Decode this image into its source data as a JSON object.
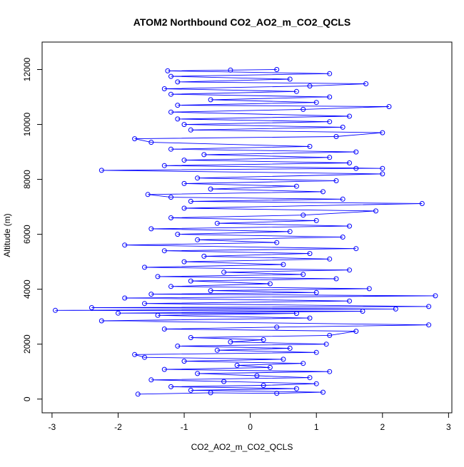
{
  "chart_data": {
    "type": "scatter",
    "title": "ATOM2 Northbound CO2_AO2_m_CO2_QCLS",
    "xlabel": "CO2_AO2_m_CO2_QCLS",
    "ylabel": "Altitude (m)",
    "xlim": [
      -3.15,
      3.05
    ],
    "ylim": [
      -500,
      13000
    ],
    "x_ticks": [
      -3,
      -2,
      -1,
      0,
      1,
      2,
      3
    ],
    "y_ticks": [
      0,
      2000,
      4000,
      6000,
      8000,
      10000,
      12000
    ],
    "x_tick_labels": [
      "-3",
      "-2",
      "-1",
      "0",
      "1",
      "2",
      "3"
    ],
    "y_tick_labels": [
      "0",
      "2000",
      "4000",
      "6000",
      "8000",
      "10000",
      "12000"
    ],
    "grid": false,
    "legend": "none",
    "series_color": "#0000ff",
    "markers": "open-circle-connected",
    "series": [
      {
        "values_xy": [
          [
            -1.7,
            180
          ],
          [
            -0.6,
            230
          ],
          [
            0.4,
            210
          ],
          [
            1.1,
            250
          ],
          [
            -0.9,
            320
          ],
          [
            0.7,
            380
          ],
          [
            -1.2,
            450
          ],
          [
            0.2,
            500
          ],
          [
            1.0,
            560
          ],
          [
            -0.4,
            640
          ],
          [
            -1.5,
            700
          ],
          [
            0.9,
            780
          ],
          [
            0.1,
            850
          ],
          [
            -0.8,
            930
          ],
          [
            1.2,
            1000
          ],
          [
            -1.3,
            1080
          ],
          [
            0.3,
            1150
          ],
          [
            -0.2,
            1230
          ],
          [
            0.8,
            1300
          ],
          [
            -1.0,
            1380
          ],
          [
            0.5,
            1450
          ],
          [
            -1.6,
            1520
          ],
          [
            -1.75,
            1620
          ],
          [
            1.0,
            1700
          ],
          [
            -0.5,
            1780
          ],
          [
            0.6,
            1850
          ],
          [
            -1.1,
            1930
          ],
          [
            1.15,
            2000
          ],
          [
            -0.3,
            2080
          ],
          [
            0.2,
            2160
          ],
          [
            -0.9,
            2240
          ],
          [
            1.2,
            2320
          ],
          [
            1.6,
            2470
          ],
          [
            -1.3,
            2550
          ],
          [
            0.4,
            2620
          ],
          [
            2.7,
            2700
          ],
          [
            -2.25,
            2850
          ],
          [
            0.9,
            2950
          ],
          [
            -1.4,
            3050
          ],
          [
            0.7,
            3120
          ],
          [
            -2.0,
            3130
          ],
          [
            1.7,
            3200
          ],
          [
            -2.95,
            3230
          ],
          [
            2.2,
            3280
          ],
          [
            -2.4,
            3330
          ],
          [
            2.7,
            3370
          ],
          [
            -1.6,
            3480
          ],
          [
            1.5,
            3570
          ],
          [
            -1.9,
            3680
          ],
          [
            2.8,
            3760
          ],
          [
            -1.5,
            3820
          ],
          [
            1.0,
            3880
          ],
          [
            -0.6,
            3950
          ],
          [
            1.8,
            4020
          ],
          [
            -1.2,
            4100
          ],
          [
            0.3,
            4200
          ],
          [
            -0.9,
            4300
          ],
          [
            1.3,
            4380
          ],
          [
            -1.4,
            4460
          ],
          [
            0.8,
            4540
          ],
          [
            -0.4,
            4620
          ],
          [
            1.5,
            4700
          ],
          [
            -1.6,
            4800
          ],
          [
            0.5,
            4900
          ],
          [
            -1.0,
            5000
          ],
          [
            1.2,
            5100
          ],
          [
            -0.7,
            5200
          ],
          [
            0.9,
            5300
          ],
          [
            -1.3,
            5400
          ],
          [
            1.6,
            5480
          ],
          [
            -1.9,
            5610
          ],
          [
            0.4,
            5700
          ],
          [
            -0.8,
            5800
          ],
          [
            1.4,
            5900
          ],
          [
            -1.1,
            6000
          ],
          [
            0.6,
            6100
          ],
          [
            -1.5,
            6200
          ],
          [
            1.5,
            6300
          ],
          [
            -0.5,
            6400
          ],
          [
            1.0,
            6500
          ],
          [
            -1.2,
            6600
          ],
          [
            0.8,
            6700
          ],
          [
            1.9,
            6850
          ],
          [
            -1.0,
            6950
          ],
          [
            2.6,
            7120
          ],
          [
            -0.9,
            7200
          ],
          [
            1.4,
            7280
          ],
          [
            -1.2,
            7350
          ],
          [
            -1.55,
            7450
          ],
          [
            1.1,
            7550
          ],
          [
            -0.6,
            7650
          ],
          [
            0.7,
            7750
          ],
          [
            -1.0,
            7850
          ],
          [
            1.3,
            7950
          ],
          [
            -0.8,
            8050
          ],
          [
            2.0,
            8200
          ],
          [
            -2.25,
            8330
          ],
          [
            1.6,
            8400
          ],
          [
            2.0,
            8400
          ],
          [
            -1.3,
            8500
          ],
          [
            1.5,
            8600
          ],
          [
            -1.0,
            8700
          ],
          [
            1.2,
            8800
          ],
          [
            -0.7,
            8900
          ],
          [
            1.6,
            9000
          ],
          [
            -1.2,
            9100
          ],
          [
            0.9,
            9200
          ],
          [
            -1.5,
            9350
          ],
          [
            -1.75,
            9480
          ],
          [
            1.3,
            9560
          ],
          [
            2.0,
            9700
          ],
          [
            -0.9,
            9800
          ],
          [
            1.4,
            9900
          ],
          [
            -1.0,
            10000
          ],
          [
            1.2,
            10100
          ],
          [
            -1.1,
            10200
          ],
          [
            1.5,
            10300
          ],
          [
            -1.2,
            10450
          ],
          [
            0.8,
            10550
          ],
          [
            2.1,
            10650
          ],
          [
            -1.1,
            10700
          ],
          [
            1.0,
            10800
          ],
          [
            -0.6,
            10900
          ],
          [
            1.2,
            11000
          ],
          [
            -1.2,
            11100
          ],
          [
            0.7,
            11200
          ],
          [
            -1.3,
            11300
          ],
          [
            0.9,
            11400
          ],
          [
            1.75,
            11480
          ],
          [
            -1.1,
            11550
          ],
          [
            0.6,
            11650
          ],
          [
            -1.2,
            11750
          ],
          [
            1.2,
            11850
          ],
          [
            -1.25,
            11950
          ],
          [
            0.4,
            12000
          ],
          [
            -0.3,
            11980
          ]
        ]
      }
    ]
  }
}
